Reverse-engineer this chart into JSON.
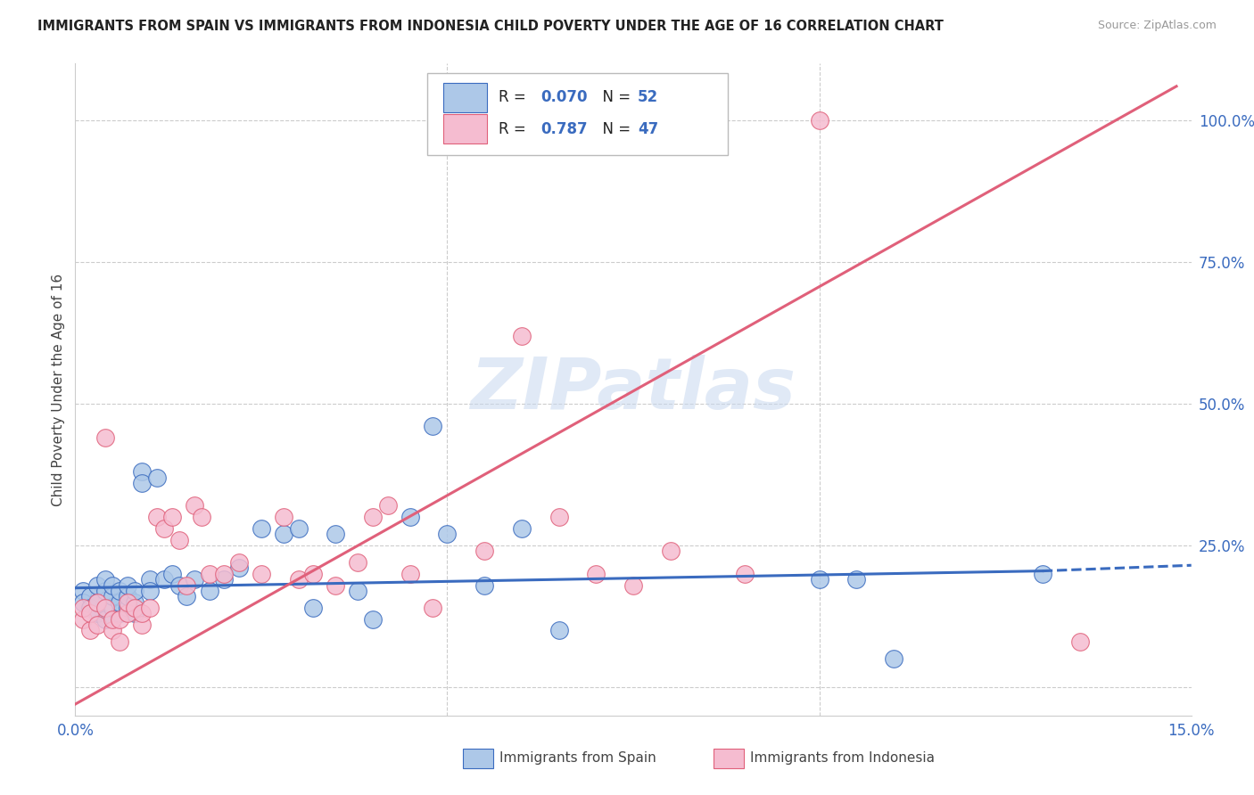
{
  "title": "IMMIGRANTS FROM SPAIN VS IMMIGRANTS FROM INDONESIA CHILD POVERTY UNDER THE AGE OF 16 CORRELATION CHART",
  "source": "Source: ZipAtlas.com",
  "ylabel": "Child Poverty Under the Age of 16",
  "xlim": [
    0.0,
    0.15
  ],
  "ylim": [
    -0.05,
    1.1
  ],
  "watermark": "ZIPatlas",
  "spain_color": "#adc8e8",
  "indonesia_color": "#f5bcd0",
  "spain_line_color": "#3a6bbf",
  "indonesia_line_color": "#e0607a",
  "spain_label": "Immigrants from Spain",
  "indonesia_label": "Immigrants from Indonesia",
  "spain_x": [
    0.001,
    0.001,
    0.002,
    0.002,
    0.003,
    0.003,
    0.003,
    0.004,
    0.004,
    0.004,
    0.005,
    0.005,
    0.005,
    0.006,
    0.006,
    0.006,
    0.007,
    0.007,
    0.007,
    0.008,
    0.008,
    0.008,
    0.009,
    0.009,
    0.01,
    0.01,
    0.011,
    0.012,
    0.013,
    0.014,
    0.015,
    0.016,
    0.018,
    0.02,
    0.022,
    0.025,
    0.028,
    0.03,
    0.032,
    0.035,
    0.038,
    0.04,
    0.045,
    0.048,
    0.05,
    0.055,
    0.06,
    0.065,
    0.1,
    0.105,
    0.11,
    0.13
  ],
  "spain_y": [
    0.17,
    0.15,
    0.16,
    0.14,
    0.13,
    0.15,
    0.18,
    0.12,
    0.17,
    0.19,
    0.14,
    0.16,
    0.18,
    0.13,
    0.15,
    0.17,
    0.14,
    0.16,
    0.18,
    0.13,
    0.15,
    0.17,
    0.38,
    0.36,
    0.19,
    0.17,
    0.37,
    0.19,
    0.2,
    0.18,
    0.16,
    0.19,
    0.17,
    0.19,
    0.21,
    0.28,
    0.27,
    0.28,
    0.14,
    0.27,
    0.17,
    0.12,
    0.3,
    0.46,
    0.27,
    0.18,
    0.28,
    0.1,
    0.19,
    0.19,
    0.05,
    0.2
  ],
  "indonesia_x": [
    0.001,
    0.001,
    0.002,
    0.002,
    0.003,
    0.003,
    0.004,
    0.004,
    0.005,
    0.005,
    0.006,
    0.006,
    0.007,
    0.007,
    0.008,
    0.009,
    0.009,
    0.01,
    0.011,
    0.012,
    0.013,
    0.014,
    0.015,
    0.016,
    0.017,
    0.018,
    0.02,
    0.022,
    0.025,
    0.028,
    0.03,
    0.032,
    0.035,
    0.038,
    0.04,
    0.042,
    0.045,
    0.048,
    0.055,
    0.06,
    0.065,
    0.07,
    0.075,
    0.08,
    0.09,
    0.1,
    0.135
  ],
  "indonesia_y": [
    0.12,
    0.14,
    0.1,
    0.13,
    0.11,
    0.15,
    0.14,
    0.44,
    0.1,
    0.12,
    0.08,
    0.12,
    0.13,
    0.15,
    0.14,
    0.11,
    0.13,
    0.14,
    0.3,
    0.28,
    0.3,
    0.26,
    0.18,
    0.32,
    0.3,
    0.2,
    0.2,
    0.22,
    0.2,
    0.3,
    0.19,
    0.2,
    0.18,
    0.22,
    0.3,
    0.32,
    0.2,
    0.14,
    0.24,
    0.62,
    0.3,
    0.2,
    0.18,
    0.24,
    0.2,
    1.0,
    0.08
  ],
  "spain_trend_x0": 0.0,
  "spain_trend_x1": 0.13,
  "spain_trend_x2": 0.15,
  "spain_trend_y0": 0.175,
  "spain_trend_y1": 0.205,
  "spain_trend_y2": 0.215,
  "indo_trend_x0": 0.0,
  "indo_trend_x1": 0.148,
  "indo_trend_y0": -0.03,
  "indo_trend_y1": 1.06
}
